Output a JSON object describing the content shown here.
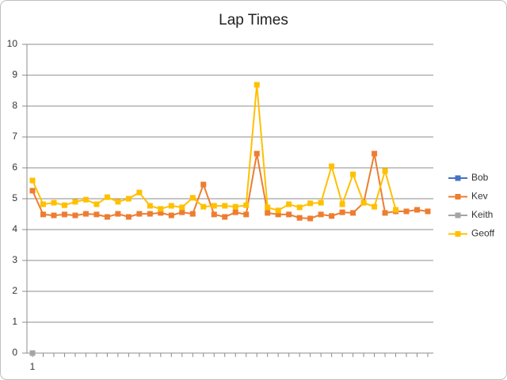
{
  "chart_data": {
    "type": "line",
    "title": "Lap Times",
    "categories": [
      "1",
      null,
      null,
      null,
      null,
      null,
      null,
      null,
      null,
      null,
      null,
      null,
      null,
      null,
      null,
      null,
      null,
      null,
      null,
      null,
      null,
      null,
      null,
      null,
      null,
      null,
      null,
      null,
      null,
      null,
      null,
      null,
      null,
      null,
      null,
      null,
      null,
      null
    ],
    "ylim": [
      0,
      10
    ],
    "yticks": [
      0,
      1,
      2,
      3,
      4,
      5,
      6,
      7,
      8,
      9,
      10
    ],
    "grid": true,
    "legend": "right",
    "series": [
      {
        "name": "Bob",
        "color": "#4472c4",
        "values": [
          0,
          null,
          null,
          null,
          null,
          null,
          null,
          null,
          null,
          null,
          null,
          null,
          null,
          null,
          null,
          null,
          null,
          null,
          null,
          null,
          null,
          null,
          null,
          null,
          null,
          null,
          null,
          null,
          null,
          null,
          null,
          null,
          null,
          null,
          null,
          null,
          null,
          null
        ]
      },
      {
        "name": "Kev",
        "color": "#ed7d31",
        "values": [
          5.26,
          4.49,
          4.46,
          4.49,
          4.46,
          4.51,
          4.49,
          4.41,
          4.51,
          4.41,
          4.51,
          4.51,
          4.54,
          4.46,
          4.56,
          4.51,
          5.46,
          4.49,
          4.41,
          4.56,
          4.49,
          6.46,
          4.54,
          4.49,
          4.49,
          4.38,
          4.36,
          4.49,
          4.44,
          4.56,
          4.54,
          4.87,
          6.46,
          4.54,
          4.59,
          4.59,
          4.64,
          4.59
        ]
      },
      {
        "name": "Keith",
        "color": "#a5a5a5",
        "values": [
          0,
          null,
          null,
          null,
          null,
          null,
          null,
          null,
          null,
          null,
          null,
          null,
          null,
          null,
          null,
          null,
          null,
          null,
          null,
          null,
          null,
          null,
          null,
          null,
          null,
          null,
          null,
          null,
          null,
          null,
          null,
          null,
          null,
          null,
          null,
          null,
          null,
          null
        ]
      },
      {
        "name": "Geoff",
        "color": "#ffc000",
        "values": [
          5.59,
          4.82,
          4.87,
          4.79,
          4.9,
          4.97,
          4.82,
          5.05,
          4.9,
          5.0,
          5.2,
          4.77,
          4.67,
          4.77,
          4.72,
          5.03,
          4.74,
          4.77,
          4.77,
          4.74,
          4.79,
          8.69,
          4.72,
          4.62,
          4.82,
          4.72,
          4.85,
          4.87,
          6.05,
          4.82,
          5.79,
          4.87,
          4.74,
          5.9,
          4.64,
          null,
          null,
          null
        ]
      }
    ]
  }
}
